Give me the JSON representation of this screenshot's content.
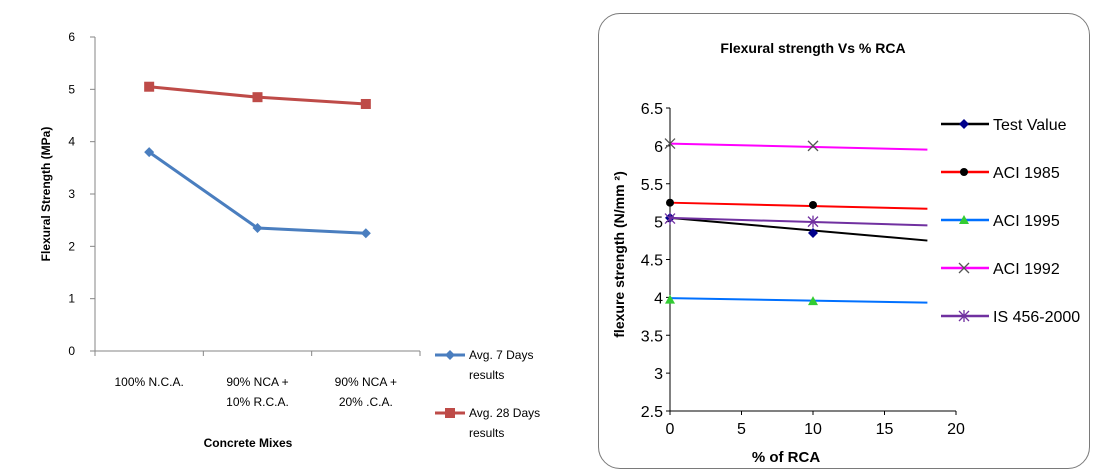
{
  "chart_data": [
    {
      "type": "line",
      "title": "",
      "xlabel": "Concrete Mixes",
      "ylabel": "Flexural Strength (MPa)",
      "categories": [
        [
          "100% N.C.A."
        ],
        [
          "90% NCA +",
          "10% R.C.A."
        ],
        [
          "90% NCA +",
          "20% .C.A."
        ]
      ],
      "ylim": [
        0,
        6
      ],
      "yticks": [
        0,
        1,
        2,
        3,
        4,
        5,
        6
      ],
      "grid": false,
      "legend_position": "bottom-right",
      "series": [
        {
          "name": [
            "Avg. 7 Days",
            "results"
          ],
          "values": [
            3.8,
            2.35,
            2.25
          ],
          "color": "#4a7ebf",
          "marker": "diamond"
        },
        {
          "name": [
            "Avg. 28 Days",
            "results"
          ],
          "values": [
            5.05,
            4.85,
            4.72
          ],
          "color": "#be4b48",
          "marker": "square"
        }
      ]
    },
    {
      "type": "line",
      "title": "Flexural strength Vs % RCA",
      "xlabel": "% of RCA",
      "ylabel": "flexure strength (N/mm ²)",
      "xlim": [
        0,
        20
      ],
      "xticks": [
        0,
        5,
        10,
        15,
        20
      ],
      "ylim": [
        2.5,
        6.5
      ],
      "yticks": [
        2.5,
        3,
        3.5,
        4,
        4.5,
        5,
        5.5,
        6,
        6.5
      ],
      "grid": false,
      "legend_position": "right",
      "series": [
        {
          "name": "Test Value",
          "color": "#000000",
          "marker": "diamond",
          "marker_color": "#00008b",
          "line": [
            [
              0,
              5.05
            ],
            [
              18,
              4.75
            ]
          ],
          "points": [
            [
              0,
              5.05
            ],
            [
              10,
              4.85
            ]
          ]
        },
        {
          "name": "ACI 1985",
          "color": "#ff0000",
          "marker": "circle",
          "marker_color": "#000000",
          "line": [
            [
              0,
              5.25
            ],
            [
              18,
              5.17
            ]
          ],
          "points": [
            [
              0,
              5.25
            ],
            [
              10,
              5.22
            ]
          ]
        },
        {
          "name": "ACI 1995",
          "color": "#0070ff",
          "marker": "triangle",
          "marker_color": "#33cc33",
          "line": [
            [
              0,
              3.99
            ],
            [
              18,
              3.93
            ]
          ],
          "points": [
            [
              0,
              3.97
            ],
            [
              10,
              3.95
            ]
          ]
        },
        {
          "name": "ACI 1992",
          "color": "#ff00ff",
          "marker": "x",
          "marker_color": "#555555",
          "line": [
            [
              0,
              6.03
            ],
            [
              18,
              5.95
            ]
          ],
          "points": [
            [
              0,
              6.03
            ],
            [
              10,
              6.0
            ]
          ]
        },
        {
          "name": "IS 456-2000",
          "color": "#7030a0",
          "marker": "star",
          "marker_color": "#7030a0",
          "line": [
            [
              0,
              5.05
            ],
            [
              18,
              4.95
            ]
          ],
          "points": [
            [
              0,
              5.04
            ],
            [
              10,
              5.0
            ]
          ]
        }
      ]
    }
  ]
}
